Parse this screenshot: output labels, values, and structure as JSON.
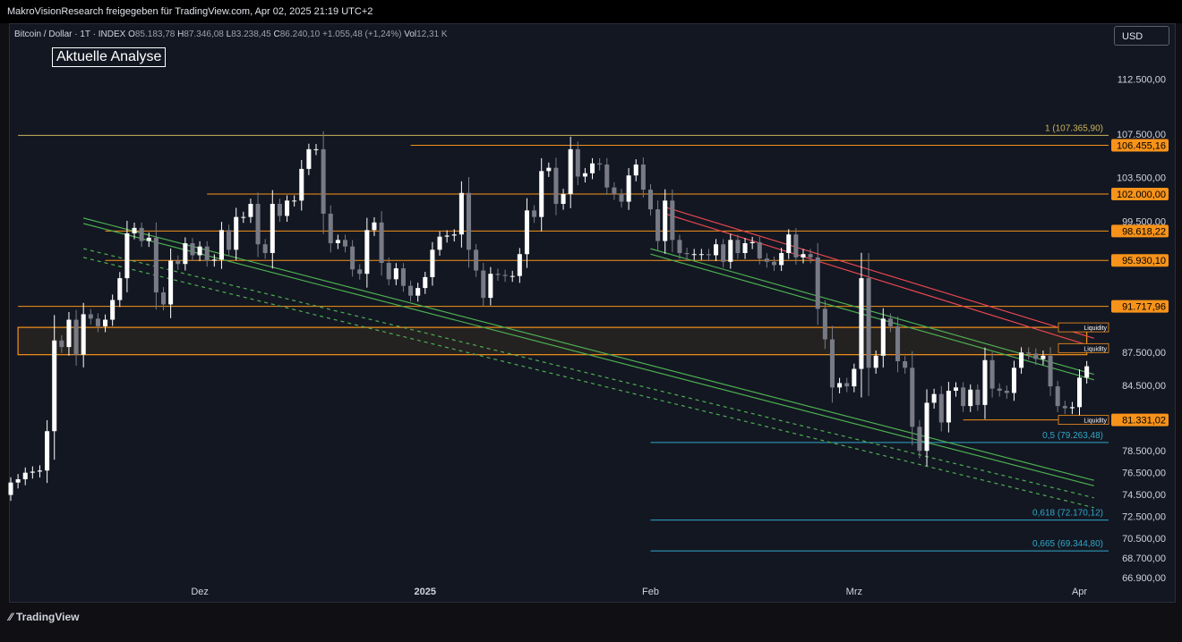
{
  "header": {
    "publish_text": "MakroVisionResearch freigegeben für TradingView.com, Apr 02, 2025 21:19 UTC+2"
  },
  "legend": {
    "symbol": "Bitcoin / Dollar · 1T · INDEX",
    "o_label": "O",
    "o_value": "85.183,78",
    "h_label": "H",
    "h_value": "87.346,08",
    "l_label": "L",
    "l_value": "83.238,45",
    "c_label": "C",
    "c_value": "86.240,10",
    "change": "+1.055,48 (+1,24%)",
    "vol_label": "Vol",
    "vol_value": "12,31 K"
  },
  "annotation_box": "Aktuelle Analyse",
  "currency_button": "USD",
  "footer": {
    "brand": "TradingView",
    "logo": "tradingview-logo-icon"
  },
  "colors": {
    "background": "#131722",
    "bull": "#ffffff",
    "bear": "#787b86",
    "level": "#f7931a",
    "fib": "#2fa8c7",
    "fib_top": "#c9b458",
    "channel": "#4caf50",
    "red_line": "#e5464f"
  },
  "chart_data": {
    "type": "candlestick",
    "ylim": [
      66900,
      115500
    ],
    "y_tick_labels": [
      "112.500,00",
      "107.500,00",
      "103.500,00",
      "99.500,00",
      "87.500,00",
      "84.500,00",
      "78.500,00",
      "76.500,00",
      "74.500,00",
      "72.500,00",
      "70.500,00",
      "68.700,00",
      "66.900,00"
    ],
    "y_tick_values": [
      112500,
      107500,
      103500,
      99500,
      87500,
      84500,
      78500,
      76500,
      74500,
      72500,
      70500,
      68700,
      66900
    ],
    "x_tick_labels": [
      "Dez",
      "2025",
      "Feb",
      "Mrz",
      "Apr"
    ],
    "x_tick_dates": [
      "2024-12-01",
      "2025-01-01",
      "2025-02-01",
      "2025-03-01",
      "2025-04-01"
    ],
    "x_range": [
      "2024-11-05",
      "2025-04-05"
    ],
    "horizontal_levels": [
      {
        "value": 106455.16,
        "label": "106.455,16",
        "start": "2024-12-30"
      },
      {
        "value": 102000.0,
        "label": "102.000,00",
        "start": "2024-12-02"
      },
      {
        "value": 98618.22,
        "label": "98.618,22",
        "start": "2024-11-18"
      },
      {
        "value": 95930.1,
        "label": "95.930,10",
        "start": "2024-11-18"
      },
      {
        "value": 91717.96,
        "label": "91.717,96",
        "start": "2024-11-06"
      },
      {
        "value": 81331.02,
        "label": "81.331,02",
        "start": "2025-03-16"
      }
    ],
    "fib_levels": [
      {
        "value": 107365.9,
        "label": "1 (107.365,90)",
        "start": "2024-11-06"
      },
      {
        "value": 79263.48,
        "label": "0,5 (79.263,48)",
        "start": "2025-02-01"
      },
      {
        "value": 72170.12,
        "label": "0,618 (72.170,12)",
        "start": "2025-02-01"
      },
      {
        "value": 69344.8,
        "label": "0,665 (69.344,80)",
        "start": "2025-02-01"
      }
    ],
    "zone": {
      "low": 87300,
      "high": 89800,
      "start": "2024-11-06",
      "end": "2025-04-02"
    },
    "liquidity_labels": [
      {
        "text": "Liquidity",
        "value": 89800
      },
      {
        "text": "Liquidity",
        "value": 87900
      },
      {
        "text": "Liquidity",
        "value": 81331
      }
    ],
    "trend_lines": [
      {
        "style": "solid",
        "color": "channel",
        "from": [
          "2024-11-15",
          99800
        ],
        "to": [
          "2025-04-03",
          75800
        ]
      },
      {
        "style": "solid",
        "color": "channel",
        "from": [
          "2024-11-15",
          99300
        ],
        "to": [
          "2025-04-03",
          75300
        ]
      },
      {
        "style": "dashed",
        "color": "channel",
        "from": [
          "2024-11-15",
          97000
        ],
        "to": [
          "2025-04-03",
          74200
        ]
      },
      {
        "style": "dashed",
        "color": "channel",
        "from": [
          "2024-11-15",
          96200
        ],
        "to": [
          "2025-04-03",
          73300
        ]
      },
      {
        "style": "solid",
        "color": "channel",
        "from": [
          "2025-02-01",
          97000
        ],
        "to": [
          "2025-04-03",
          85500
        ]
      },
      {
        "style": "solid",
        "color": "channel",
        "from": [
          "2025-02-01",
          96500
        ],
        "to": [
          "2025-04-03",
          85000
        ]
      },
      {
        "style": "solid",
        "color": "red_line",
        "from": [
          "2025-02-03",
          100800
        ],
        "to": [
          "2025-04-03",
          88800
        ]
      },
      {
        "style": "solid",
        "color": "red_line",
        "from": [
          "2025-02-03",
          100200
        ],
        "to": [
          "2025-04-03",
          88000
        ]
      }
    ],
    "daily_close": [
      [
        "2024-11-05",
        75600
      ],
      [
        "2024-11-06",
        75900
      ],
      [
        "2024-11-07",
        76500
      ],
      [
        "2024-11-08",
        76600
      ],
      [
        "2024-11-09",
        76700
      ],
      [
        "2024-11-10",
        80300
      ],
      [
        "2024-11-11",
        88600
      ],
      [
        "2024-11-12",
        88000
      ],
      [
        "2024-11-13",
        90500
      ],
      [
        "2024-11-14",
        87300
      ],
      [
        "2024-11-15",
        91000
      ],
      [
        "2024-11-16",
        90600
      ],
      [
        "2024-11-17",
        89900
      ],
      [
        "2024-11-18",
        90500
      ],
      [
        "2024-11-19",
        92300
      ],
      [
        "2024-11-20",
        94300
      ],
      [
        "2024-11-21",
        98400
      ],
      [
        "2024-11-22",
        98900
      ],
      [
        "2024-11-23",
        97700
      ],
      [
        "2024-11-24",
        98000
      ],
      [
        "2024-11-25",
        93000
      ],
      [
        "2024-11-26",
        91900
      ],
      [
        "2024-11-27",
        95900
      ],
      [
        "2024-11-28",
        95600
      ],
      [
        "2024-11-29",
        97500
      ],
      [
        "2024-11-30",
        96400
      ],
      [
        "2024-12-01",
        97200
      ],
      [
        "2024-12-02",
        95900
      ],
      [
        "2024-12-03",
        96000
      ],
      [
        "2024-12-04",
        98700
      ],
      [
        "2024-12-05",
        96900
      ],
      [
        "2024-12-06",
        99900
      ],
      [
        "2024-12-07",
        99900
      ],
      [
        "2024-12-08",
        101100
      ],
      [
        "2024-12-09",
        97400
      ],
      [
        "2024-12-10",
        96600
      ],
      [
        "2024-12-11",
        101100
      ],
      [
        "2024-12-12",
        100000
      ],
      [
        "2024-12-13",
        101400
      ],
      [
        "2024-12-14",
        101400
      ],
      [
        "2024-12-15",
        104300
      ],
      [
        "2024-12-16",
        106100
      ],
      [
        "2024-12-17",
        106100
      ],
      [
        "2024-12-18",
        100200
      ],
      [
        "2024-12-19",
        97500
      ],
      [
        "2024-12-20",
        97800
      ],
      [
        "2024-12-21",
        97200
      ],
      [
        "2024-12-22",
        95100
      ],
      [
        "2024-12-23",
        94700
      ],
      [
        "2024-12-24",
        98700
      ],
      [
        "2024-12-25",
        99400
      ],
      [
        "2024-12-26",
        95700
      ],
      [
        "2024-12-27",
        94200
      ],
      [
        "2024-12-28",
        95200
      ],
      [
        "2024-12-29",
        93600
      ],
      [
        "2024-12-30",
        92700
      ],
      [
        "2024-12-31",
        93400
      ],
      [
        "2025-01-01",
        94400
      ],
      [
        "2025-01-02",
        96900
      ],
      [
        "2025-01-03",
        98100
      ],
      [
        "2025-01-04",
        98200
      ],
      [
        "2025-01-05",
        98300
      ],
      [
        "2025-01-06",
        102100
      ],
      [
        "2025-01-07",
        96900
      ],
      [
        "2025-01-08",
        95000
      ],
      [
        "2025-01-09",
        92500
      ],
      [
        "2025-01-10",
        94700
      ],
      [
        "2025-01-11",
        94600
      ],
      [
        "2025-01-12",
        94500
      ],
      [
        "2025-01-13",
        94500
      ],
      [
        "2025-01-14",
        96500
      ],
      [
        "2025-01-15",
        100500
      ],
      [
        "2025-01-16",
        99900
      ],
      [
        "2025-01-17",
        104100
      ],
      [
        "2025-01-18",
        104400
      ],
      [
        "2025-01-19",
        101100
      ],
      [
        "2025-01-20",
        102000
      ],
      [
        "2025-01-21",
        106100
      ],
      [
        "2025-01-22",
        103600
      ],
      [
        "2025-01-23",
        103900
      ],
      [
        "2025-01-24",
        104800
      ],
      [
        "2025-01-25",
        104700
      ],
      [
        "2025-01-26",
        102600
      ],
      [
        "2025-01-27",
        102000
      ],
      [
        "2025-01-28",
        101300
      ],
      [
        "2025-01-29",
        103700
      ],
      [
        "2025-01-30",
        104700
      ],
      [
        "2025-01-31",
        102400
      ],
      [
        "2025-02-01",
        100600
      ],
      [
        "2025-02-02",
        97700
      ],
      [
        "2025-02-03",
        101400
      ],
      [
        "2025-02-04",
        97800
      ],
      [
        "2025-02-05",
        96600
      ],
      [
        "2025-02-06",
        96500
      ],
      [
        "2025-02-07",
        96500
      ],
      [
        "2025-02-08",
        96500
      ],
      [
        "2025-02-09",
        96400
      ],
      [
        "2025-02-10",
        97400
      ],
      [
        "2025-02-11",
        95800
      ],
      [
        "2025-02-12",
        97800
      ],
      [
        "2025-02-13",
        96600
      ],
      [
        "2025-02-14",
        97500
      ],
      [
        "2025-02-15",
        97600
      ],
      [
        "2025-02-16",
        96100
      ],
      [
        "2025-02-17",
        95800
      ],
      [
        "2025-02-18",
        95500
      ],
      [
        "2025-02-19",
        96600
      ],
      [
        "2025-02-20",
        98300
      ],
      [
        "2025-02-21",
        96200
      ],
      [
        "2025-02-22",
        96500
      ],
      [
        "2025-02-23",
        96200
      ],
      [
        "2025-02-24",
        91500
      ],
      [
        "2025-02-25",
        88700
      ],
      [
        "2025-02-26",
        84300
      ],
      [
        "2025-02-27",
        84700
      ],
      [
        "2025-02-28",
        84400
      ],
      [
        "2025-03-01",
        86000
      ],
      [
        "2025-03-02",
        94300
      ],
      [
        "2025-03-03",
        86100
      ],
      [
        "2025-03-04",
        87200
      ],
      [
        "2025-03-05",
        90600
      ],
      [
        "2025-03-06",
        89900
      ],
      [
        "2025-03-07",
        86700
      ],
      [
        "2025-03-08",
        86100
      ],
      [
        "2025-03-09",
        80700
      ],
      [
        "2025-03-10",
        78500
      ],
      [
        "2025-03-11",
        82900
      ],
      [
        "2025-03-12",
        83700
      ],
      [
        "2025-03-13",
        81100
      ],
      [
        "2025-03-14",
        84000
      ],
      [
        "2025-03-15",
        84300
      ],
      [
        "2025-03-16",
        82600
      ],
      [
        "2025-03-17",
        84100
      ],
      [
        "2025-03-18",
        82700
      ],
      [
        "2025-03-19",
        86800
      ],
      [
        "2025-03-20",
        84200
      ],
      [
        "2025-03-21",
        84000
      ],
      [
        "2025-03-22",
        83800
      ],
      [
        "2025-03-23",
        86100
      ],
      [
        "2025-03-24",
        87500
      ],
      [
        "2025-03-25",
        87400
      ],
      [
        "2025-03-26",
        86900
      ],
      [
        "2025-03-27",
        87200
      ],
      [
        "2025-03-28",
        84400
      ],
      [
        "2025-03-29",
        82600
      ],
      [
        "2025-03-30",
        82400
      ],
      [
        "2025-03-31",
        82500
      ],
      [
        "2025-04-01",
        85200
      ],
      [
        "2025-04-02",
        86240
      ]
    ]
  }
}
